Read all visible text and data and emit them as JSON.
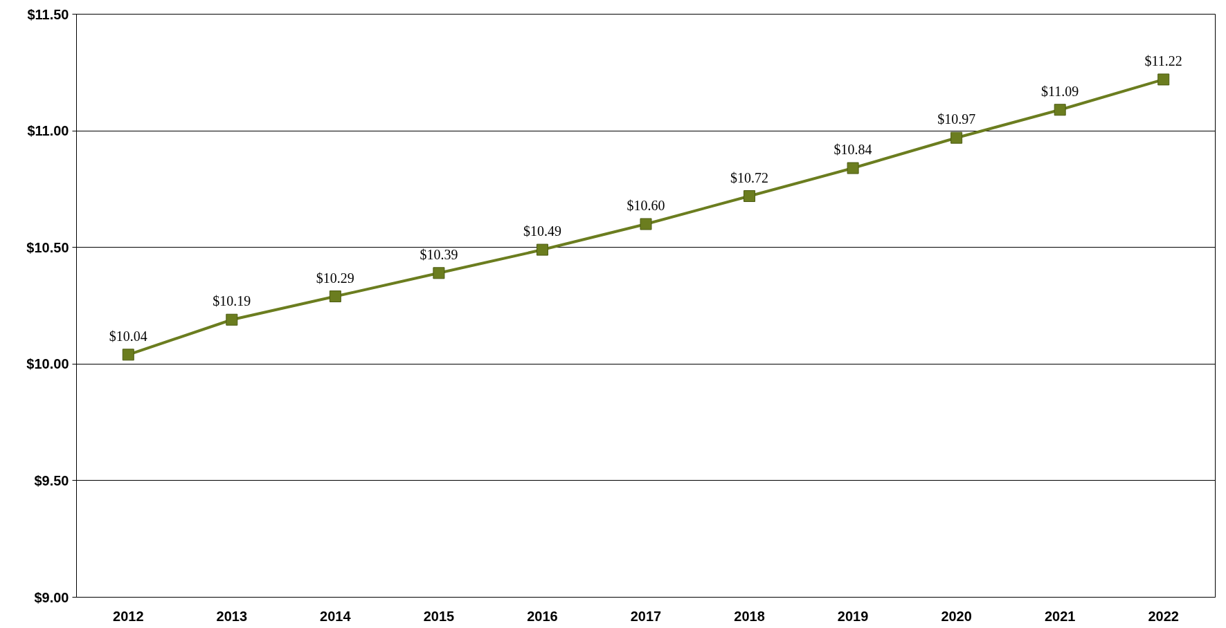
{
  "chart_data": {
    "type": "line",
    "categories": [
      "2012",
      "2013",
      "2014",
      "2015",
      "2016",
      "2017",
      "2018",
      "2019",
      "2020",
      "2021",
      "2022"
    ],
    "series": [
      {
        "color": "#6b7d1f",
        "values": [
          10.04,
          10.19,
          10.29,
          10.39,
          10.49,
          10.6,
          10.72,
          10.84,
          10.97,
          11.09,
          11.22
        ],
        "value_labels": [
          "$10.04",
          "$10.19",
          "$10.29",
          "$10.39",
          "$10.49",
          "$10.60",
          "$10.72",
          "$10.84",
          "$10.97",
          "$11.09",
          "$11.22"
        ]
      }
    ],
    "ylim": [
      9.0,
      11.5
    ],
    "yticks": [
      {
        "value": 9.0,
        "label": "$9.00"
      },
      {
        "value": 9.5,
        "label": "$9.50"
      },
      {
        "value": 10.0,
        "label": "$10.00"
      },
      {
        "value": 10.5,
        "label": "$10.50"
      },
      {
        "value": 11.0,
        "label": "$11.00"
      },
      {
        "value": 11.5,
        "label": "$11.50"
      }
    ],
    "grid": "y",
    "marker": "square",
    "line_style": "solid"
  }
}
